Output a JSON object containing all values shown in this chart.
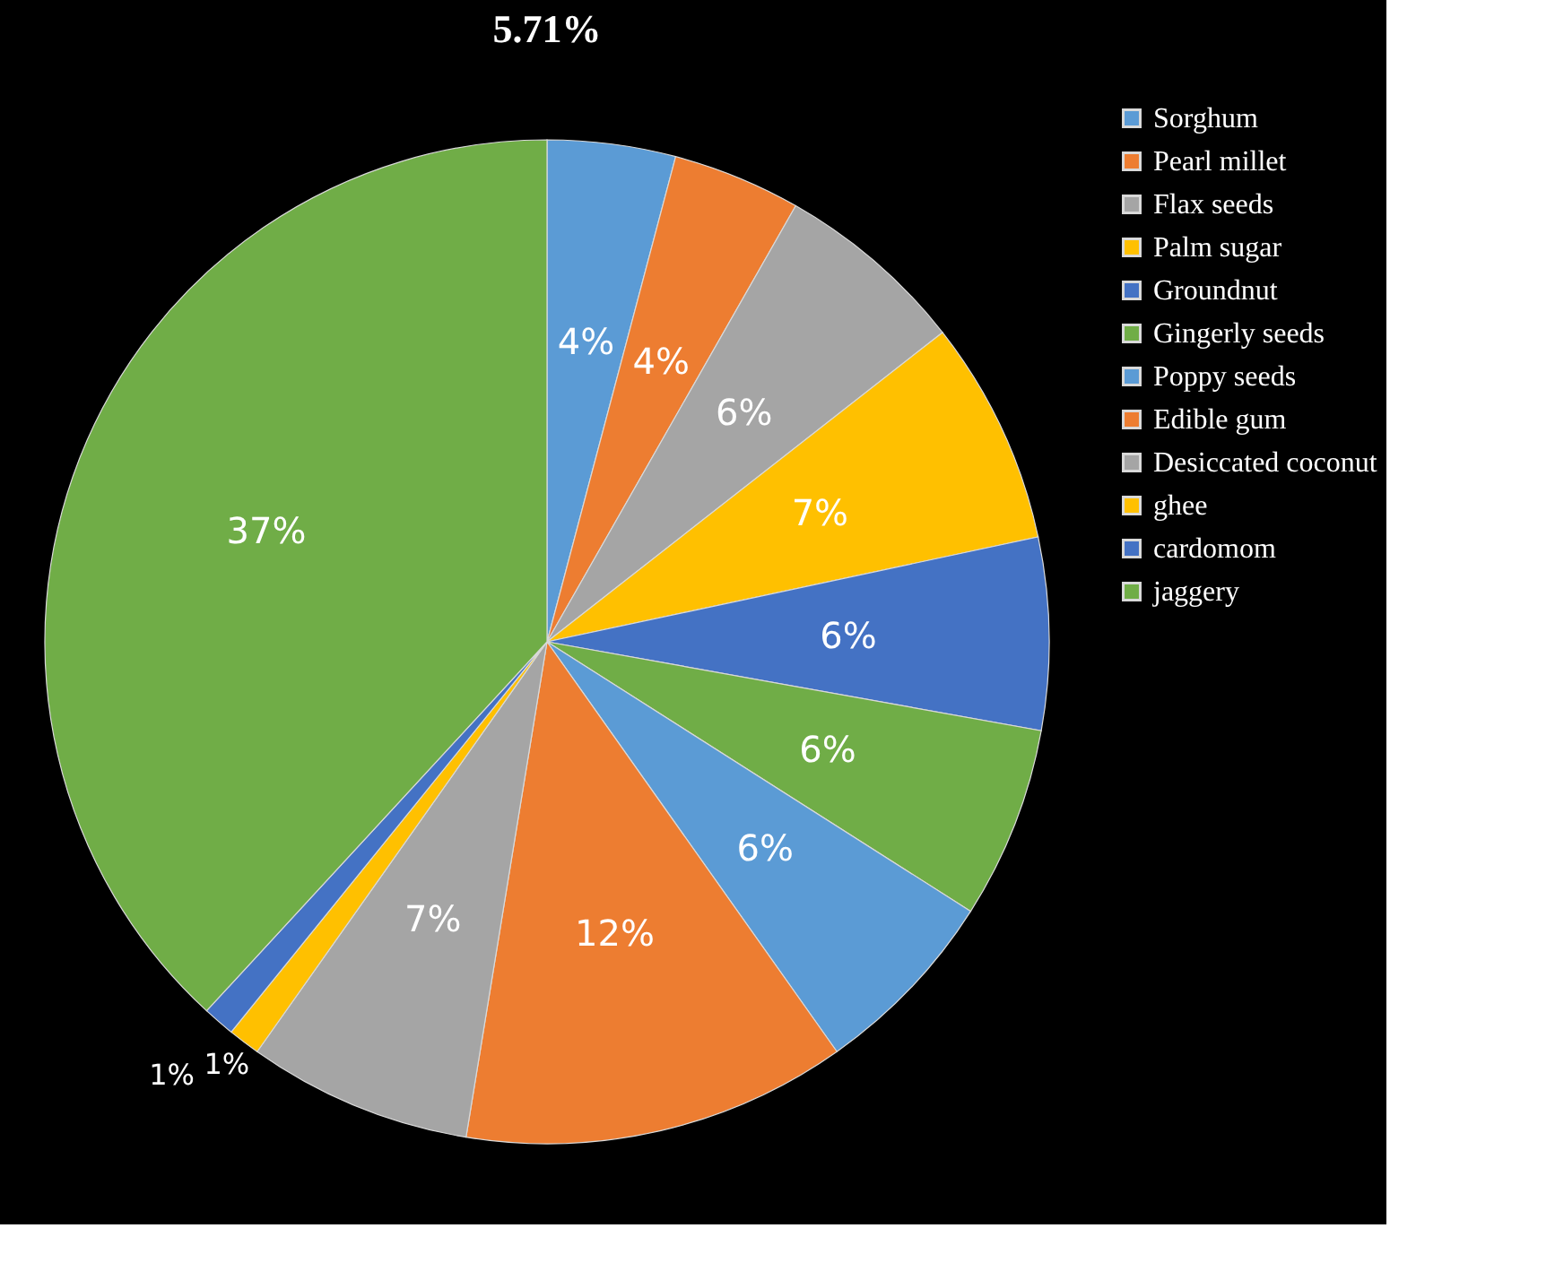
{
  "chart_data": {
    "type": "pie",
    "title": "5.71%",
    "categories": [
      "Sorghum",
      "Pearl millet",
      "Flax seeds",
      "Palm sugar",
      "Groundnut",
      "Gingerly seeds",
      "Poppy seeds",
      "Edible gum",
      "Desiccated coconut",
      "ghee",
      "cardomom",
      "jaggery"
    ],
    "values": [
      4,
      4,
      6,
      7,
      6,
      6,
      6,
      12,
      7,
      1,
      1,
      37
    ],
    "value_labels": [
      "4%",
      "4%",
      "6%",
      "7%",
      "6%",
      "6%",
      "6%",
      "12%",
      "7%",
      "1%",
      "1%",
      "37%"
    ],
    "colors": [
      "#5b9bd5",
      "#ed7d31",
      "#a5a5a5",
      "#ffc000",
      "#4472c4",
      "#70ad47",
      "#5b9bd5",
      "#ed7d31",
      "#a5a5a5",
      "#ffc000",
      "#4472c4",
      "#70ad47"
    ],
    "legend": "right"
  }
}
